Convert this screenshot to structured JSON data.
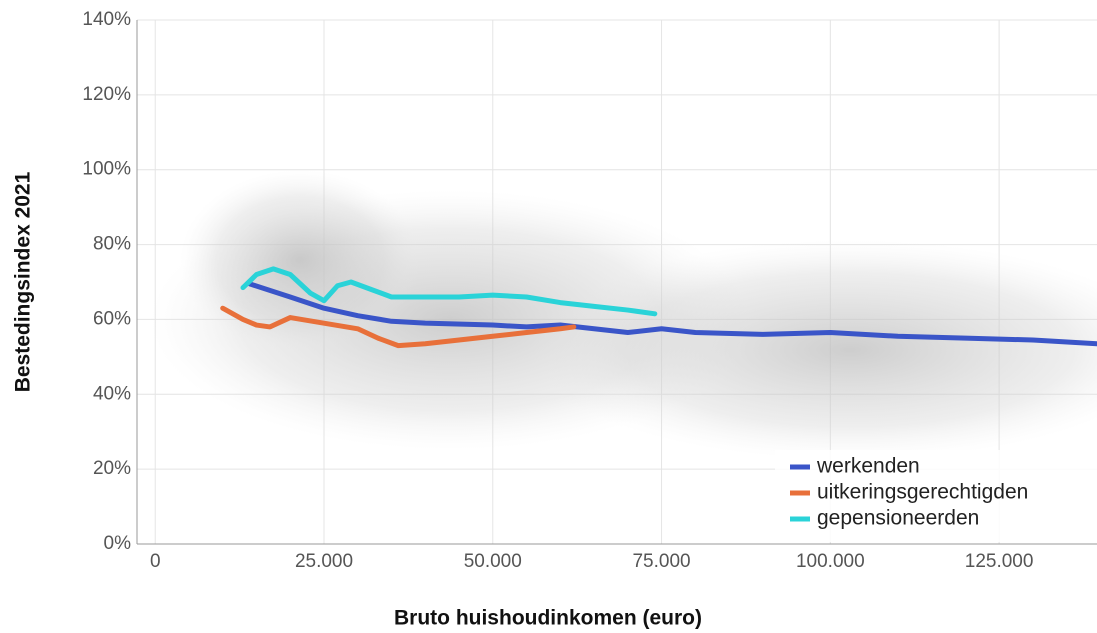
{
  "chart_data": {
    "type": "line",
    "x_label": "Bruto huishoudinkomen (euro)",
    "y_label": "Bestedingsindex 2021",
    "xlim": [
      -2700,
      139500
    ],
    "ylim": [
      0,
      140
    ],
    "xticks": [
      0,
      {
        "value": 25000,
        "label": "25.000"
      },
      {
        "value": 50000,
        "label": "50.000"
      },
      {
        "value": 75000,
        "label": "75.000"
      },
      {
        "value": 100000,
        "label": "100.000"
      },
      {
        "value": 125000,
        "label": "125.000"
      }
    ],
    "yticks": [
      {
        "value": 0,
        "label": "0%"
      },
      {
        "value": 20,
        "label": "20%"
      },
      {
        "value": 40,
        "label": "40%"
      },
      {
        "value": 60,
        "label": "60%"
      },
      {
        "value": 80,
        "label": "80%"
      },
      {
        "value": 100,
        "label": "100%"
      },
      {
        "value": 120,
        "label": "120%"
      },
      {
        "value": 140,
        "label": "140%"
      }
    ],
    "grid": true,
    "legend": "bottom-right",
    "series": [
      {
        "name": "werkenden",
        "color": "#3a55c8",
        "x": [
          14000,
          20000,
          25000,
          30000,
          35000,
          40000,
          50000,
          55000,
          60000,
          65000,
          70000,
          75000,
          80000,
          90000,
          100000,
          110000,
          120000,
          130000,
          139500
        ],
        "values": [
          69.5,
          66,
          63,
          61,
          59.5,
          59,
          58.5,
          58,
          58.5,
          57.5,
          56.5,
          57.5,
          56.5,
          56,
          56.5,
          55.5,
          55,
          54.5,
          53.5
        ]
      },
      {
        "name": "uitkeringsgerechtigden",
        "color": "#e8703a",
        "x": [
          10000,
          13000,
          15000,
          17000,
          20000,
          25000,
          30000,
          33000,
          36000,
          40000,
          45000,
          50000,
          55000,
          60000,
          62000
        ],
        "values": [
          63,
          60,
          58.5,
          58,
          60.5,
          59,
          57.5,
          55,
          53,
          53.5,
          54.5,
          55.5,
          56.5,
          57.5,
          58
        ]
      },
      {
        "name": "gepensioneerden",
        "color": "#2ad3d8",
        "x": [
          13000,
          15000,
          17500,
          20000,
          23000,
          25000,
          27000,
          29000,
          32000,
          35000,
          40000,
          45000,
          50000,
          55000,
          60000,
          65000,
          70000,
          74000
        ],
        "values": [
          68.5,
          72,
          73.5,
          72,
          67,
          65,
          69,
          70,
          68,
          66,
          66,
          66,
          66.5,
          66,
          64.5,
          63.5,
          62.5,
          61.5
        ]
      }
    ]
  }
}
